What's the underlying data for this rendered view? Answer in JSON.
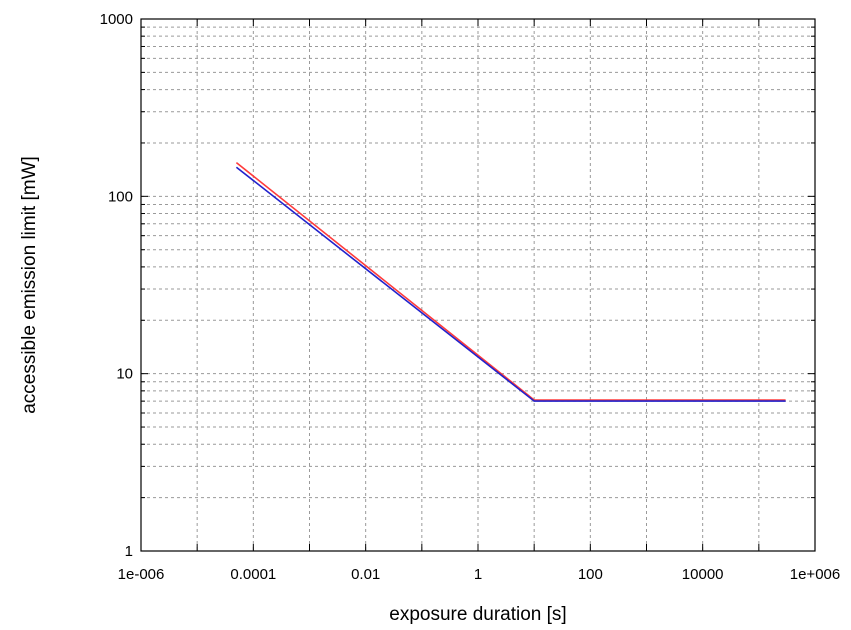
{
  "chart_data": {
    "type": "line",
    "title": "",
    "xlabel": "exposure duration [s]",
    "ylabel": "accessible emission limit [mW]",
    "x_scale": "log",
    "y_scale": "log",
    "xlim": [
      1e-06,
      1000000
    ],
    "ylim": [
      1,
      1000
    ],
    "grid": true,
    "x_ticks": [
      {
        "value": 1e-06,
        "label": "1e-006"
      },
      {
        "value": 0.0001,
        "label": "0.0001"
      },
      {
        "value": 0.01,
        "label": "0.01"
      },
      {
        "value": 1,
        "label": "1"
      },
      {
        "value": 100,
        "label": "100"
      },
      {
        "value": 10000,
        "label": "10000"
      },
      {
        "value": 1000000,
        "label": "1e+006"
      }
    ],
    "y_ticks": [
      {
        "value": 1,
        "label": "1"
      },
      {
        "value": 10,
        "label": "10"
      },
      {
        "value": 100,
        "label": "100"
      },
      {
        "value": 1000,
        "label": "1000"
      }
    ],
    "series": [
      {
        "color": "#ff3b3b",
        "x": [
          5e-05,
          10,
          300000
        ],
        "y": [
          155,
          7.1,
          7.1
        ]
      },
      {
        "color": "#2222cc",
        "x": [
          5e-05,
          10,
          300000
        ],
        "y": [
          146,
          7.0,
          7.0
        ]
      }
    ]
  }
}
